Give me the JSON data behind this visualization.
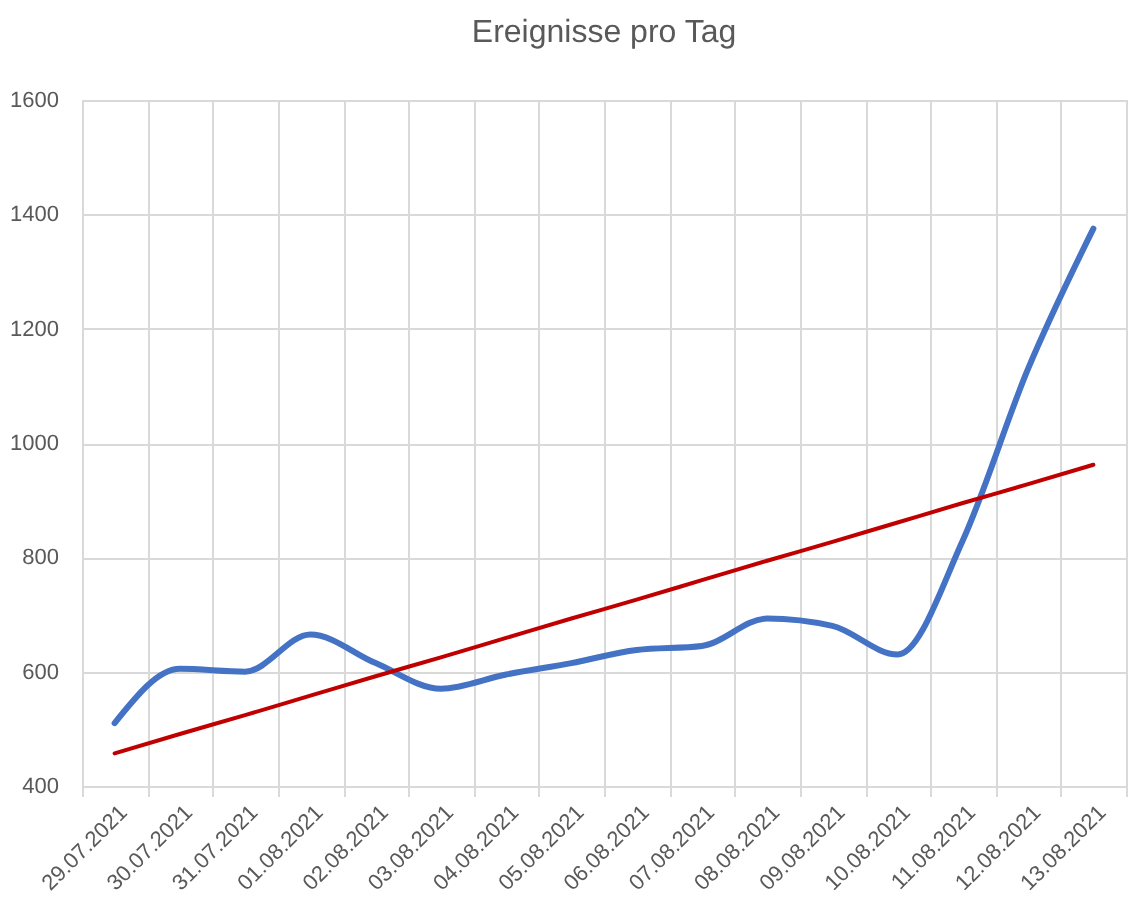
{
  "chart_data": {
    "type": "line",
    "title": "Ereignisse pro Tag",
    "categories": [
      "29.07.2021",
      "30.07.2021",
      "31.07.2021",
      "01.08.2021",
      "02.08.2021",
      "03.08.2021",
      "04.08.2021",
      "05.08.2021",
      "06.08.2021",
      "07.08.2021",
      "08.08.2021",
      "09.08.2021",
      "10.08.2021",
      "11.08.2021",
      "12.08.2021",
      "13.08.2021"
    ],
    "series": [
      {
        "color": "#4472c4",
        "values": [
          510,
          605,
          600,
          665,
          615,
          570,
          595,
          615,
          638,
          645,
          693,
          680,
          630,
          830,
          1130,
          1375
        ]
      },
      {
        "type": "line",
        "color": "#c00000",
        "values": [
          457,
          491,
          524,
          558,
          592,
          625,
          659,
          693,
          726,
          760,
          794,
          827,
          861,
          895,
          928,
          962
        ]
      }
    ],
    "ylim": [
      400,
      1600
    ],
    "yticks": [
      400,
      600,
      800,
      1000,
      1200,
      1400,
      1600
    ],
    "grid": true
  }
}
